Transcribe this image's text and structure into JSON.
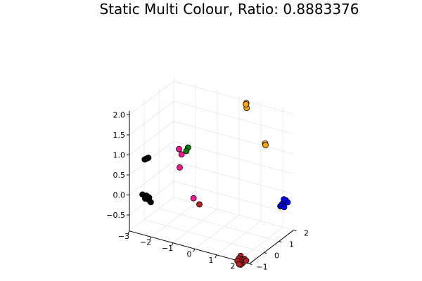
{
  "chart_data": {
    "type": "scatter",
    "title": "Static Multi Colour, Ratio: 0.8883376",
    "xlabel": "",
    "ylabel": "",
    "zlabel": "",
    "grid": true,
    "legend": "none",
    "xticks": [
      "−3",
      "−2",
      "−1",
      "0",
      "1",
      "2"
    ],
    "yticks": [
      "−1",
      "0",
      "1",
      "2"
    ],
    "zticks": [
      "−0.5",
      "0.0",
      "0.5",
      "1.0",
      "1.5",
      "2.0"
    ],
    "series": [
      {
        "color": "#000000",
        "points": [
          [
            -2.3,
            -0.9,
            0.02
          ],
          [
            -2.25,
            -0.95,
            0.08
          ],
          [
            -2.2,
            -0.85,
            -0.05
          ],
          [
            -2.35,
            -0.9,
            -0.02
          ],
          [
            -2.15,
            -0.92,
            0.04
          ],
          [
            -2.28,
            -0.8,
            0.0
          ],
          [
            -2.4,
            -1.0,
            0.1
          ],
          [
            -2.1,
            -0.88,
            -0.08
          ],
          [
            -2.3,
            -0.9,
            0.98
          ],
          [
            -2.25,
            -0.88,
            1.0
          ],
          [
            -2.35,
            -0.92,
            0.96
          ],
          [
            -2.2,
            -0.9,
            1.02
          ]
        ]
      },
      {
        "color": "#ff1493",
        "points": [
          [
            -1.2,
            -0.3,
            1.22
          ],
          [
            -1.05,
            -0.35,
            1.12
          ],
          [
            -1.1,
            -0.4,
            0.8
          ],
          [
            -0.6,
            -0.2,
            0.05
          ]
        ]
      },
      {
        "color": "#008000",
        "points": [
          [
            -0.85,
            -0.2,
            1.28
          ],
          [
            -0.9,
            -0.25,
            1.2
          ]
        ]
      },
      {
        "color": "#b22222",
        "points": [
          [
            -0.4,
            -0.1,
            -0.1
          ],
          [
            2.1,
            -0.9,
            -0.9
          ],
          [
            2.0,
            -0.85,
            -0.82
          ],
          [
            2.15,
            -0.95,
            -0.95
          ],
          [
            1.95,
            -0.9,
            -0.88
          ],
          [
            2.05,
            -0.8,
            -0.92
          ],
          [
            2.2,
            -0.88,
            -0.86
          ],
          [
            2.1,
            -1.0,
            -0.98
          ],
          [
            1.9,
            -0.92,
            -0.94
          ],
          [
            2.25,
            -0.85,
            -0.9
          ],
          [
            2.0,
            -0.95,
            -1.0
          ]
        ]
      },
      {
        "color": "#ffa500",
        "points": [
          [
            0.6,
            1.6,
            2.1
          ],
          [
            0.65,
            1.55,
            2.0
          ],
          [
            0.55,
            1.65,
            2.05
          ],
          [
            1.6,
            1.4,
            1.3
          ],
          [
            1.65,
            1.35,
            1.28
          ]
        ]
      },
      {
        "color": "#0000ff",
        "points": [
          [
            2.6,
            1.2,
            0.05
          ],
          [
            2.55,
            1.15,
            0.0
          ],
          [
            2.65,
            1.25,
            0.08
          ],
          [
            2.5,
            1.1,
            -0.05
          ],
          [
            2.7,
            1.3,
            0.02
          ],
          [
            2.6,
            1.05,
            -0.02
          ],
          [
            2.58,
            1.22,
            0.1
          ],
          [
            2.62,
            1.18,
            -0.08
          ]
        ]
      }
    ]
  }
}
